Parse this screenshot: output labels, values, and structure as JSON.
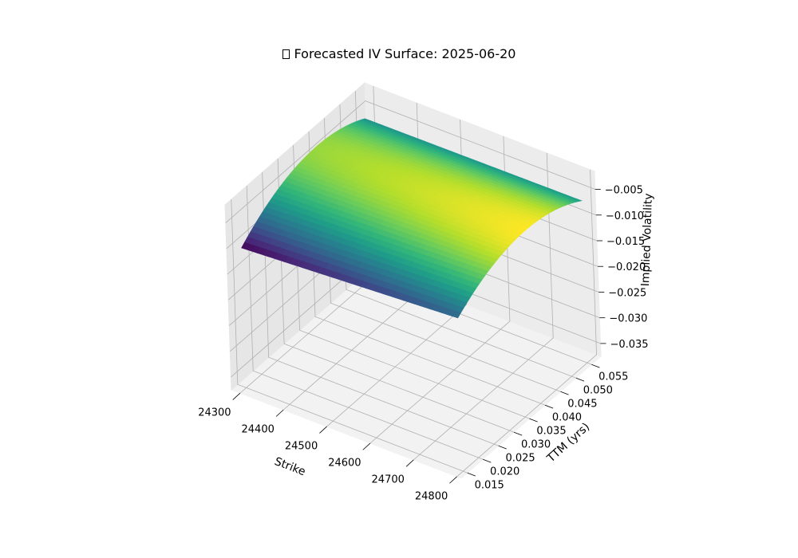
{
  "title": "Forecasted IV Surface: 2025-06-20",
  "chart_data": {
    "type": "surface3d",
    "title": "Forecasted IV Surface: 2025-06-20",
    "xlabel": "Strike",
    "ylabel": "TTM (yrs)",
    "zlabel": "Implied Volatility",
    "colormap": "viridis",
    "xlim": [
      24280,
      24810
    ],
    "ylim": [
      0.013,
      0.058
    ],
    "zlim": [
      -0.0375,
      -0.0015
    ],
    "x_ticks": [
      "24300",
      "24400",
      "24500",
      "24600",
      "24700",
      "24800"
    ],
    "y_ticks": [
      "0.015",
      "0.020",
      "0.025",
      "0.030",
      "0.035",
      "0.040",
      "0.045",
      "0.050",
      "0.055"
    ],
    "z_ticks": [
      "−0.035",
      "−0.030",
      "−0.025",
      "−0.020",
      "−0.015",
      "−0.010",
      "−0.005"
    ],
    "x_tick_values": [
      24300,
      24400,
      24500,
      24600,
      24700,
      24800
    ],
    "y_tick_values": [
      0.015,
      0.02,
      0.025,
      0.03,
      0.035,
      0.04,
      0.045,
      0.05,
      0.055
    ],
    "z_tick_values": [
      -0.035,
      -0.03,
      -0.025,
      -0.02,
      -0.015,
      -0.01,
      -0.005
    ],
    "surface_extent": {
      "strike": [
        24300,
        24800
      ],
      "ttm": [
        0.015,
        0.055
      ]
    },
    "surface_samples": [
      {
        "strike": 24300,
        "ttm": 0.015,
        "iv": -0.0375
      },
      {
        "strike": 24800,
        "ttm": 0.015,
        "iv": -0.032
      },
      {
        "strike": 24300,
        "ttm": 0.055,
        "iv": -0.0135
      },
      {
        "strike": 24800,
        "ttm": 0.055,
        "iv": -0.0065
      },
      {
        "strike": 24300,
        "ttm": 0.04,
        "iv": -0.0035
      },
      {
        "strike": 24800,
        "ttm": 0.04,
        "iv": -0.0035
      }
    ],
    "grid": true
  }
}
